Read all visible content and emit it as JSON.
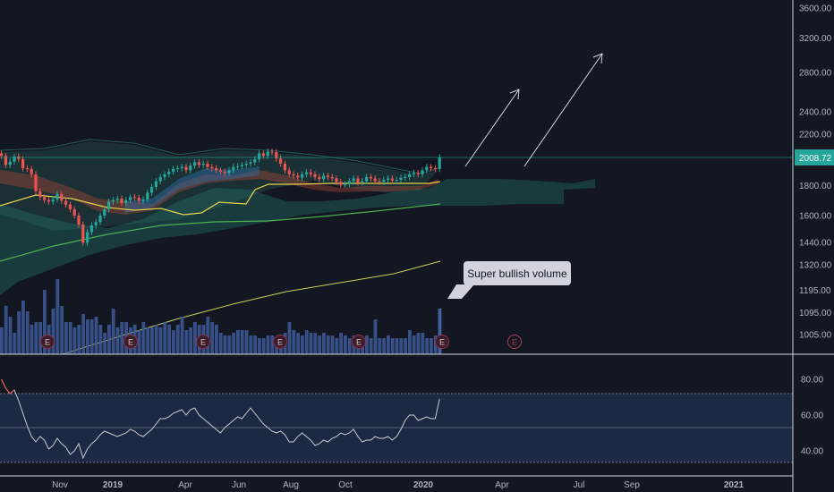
{
  "chart_data": [
    {
      "type": "candlestick",
      "title": "",
      "x_tick_labels": [
        "Nov",
        "2019",
        "Apr",
        "Jun",
        "Aug",
        "Oct",
        "2020",
        "Apr",
        "Jul",
        "Sep",
        "2021"
      ],
      "price_axis_labels": [
        "3600.00",
        "3200.00",
        "2800.00",
        "2400.00",
        "2200.00",
        "1800.00",
        "1600.00",
        "1440.00",
        "1320.00",
        "1195.00",
        "1095.00",
        "1005.00"
      ],
      "last_price": "2008.72",
      "price_ylim": [
        960,
        3750
      ],
      "close_values": [
        2020,
        1950,
        1975,
        2015,
        1995,
        1925,
        1920,
        1880,
        1760,
        1720,
        1700,
        1690,
        1705,
        1740,
        1695,
        1670,
        1640,
        1600,
        1545,
        1440,
        1500,
        1540,
        1560,
        1600,
        1640,
        1690,
        1700,
        1710,
        1680,
        1700,
        1720,
        1715,
        1695,
        1705,
        1750,
        1790,
        1830,
        1860,
        1880,
        1900,
        1920,
        1925,
        1935,
        1910,
        1945,
        1970,
        1950,
        1960,
        1935,
        1925,
        1910,
        1900,
        1890,
        1910,
        1935,
        1940,
        1950,
        1960,
        1970,
        1995,
        2040,
        2020,
        2055,
        2050,
        2000,
        1960,
        1910,
        1880,
        1870,
        1855,
        1880,
        1895,
        1880,
        1860,
        1845,
        1870,
        1860,
        1850,
        1825,
        1805,
        1810,
        1830,
        1850,
        1820,
        1830,
        1860,
        1850,
        1830,
        1825,
        1840,
        1850,
        1835,
        1840,
        1855,
        1860,
        1880,
        1890,
        1880,
        1910,
        1935,
        1925,
        1920,
        2008.72
      ],
      "volume_values": [
        10,
        18,
        14,
        8,
        16,
        20,
        16,
        11,
        12,
        12,
        24,
        11,
        17,
        28,
        18,
        12,
        12,
        10,
        11,
        15,
        13,
        13,
        14,
        11,
        8,
        11,
        17,
        10,
        12,
        12,
        10,
        11,
        9,
        12,
        10,
        10,
        11,
        10,
        12,
        11,
        9,
        11,
        14,
        9,
        10,
        12,
        11,
        11,
        14,
        12,
        11,
        8,
        7,
        7,
        8,
        9,
        9,
        9,
        7,
        7,
        6,
        6,
        7,
        7,
        6,
        7,
        8,
        12,
        9,
        8,
        7,
        9,
        8,
        8,
        7,
        8,
        7,
        7,
        6,
        8,
        7,
        6,
        7,
        7,
        6,
        7,
        6,
        13,
        6,
        6,
        7,
        6,
        6,
        6,
        6,
        9,
        7,
        8,
        8,
        6,
        6,
        7,
        17
      ],
      "earnings_markers": [
        "E",
        "E",
        "E",
        "E",
        "E",
        "E",
        "E"
      ],
      "annotation": "Super bullish volume"
    },
    {
      "type": "line",
      "title": "",
      "y_tick_labels": [
        "80.00",
        "60.00",
        "40.00"
      ],
      "ylim": [
        26,
        92
      ],
      "values": [
        80,
        75,
        72,
        74,
        68,
        61,
        54,
        48,
        45,
        48,
        46,
        41,
        43,
        47,
        44,
        42,
        38,
        40,
        44,
        36,
        41,
        44,
        46,
        49,
        51,
        50,
        49,
        48,
        49,
        50,
        52,
        51,
        49,
        48,
        50,
        52,
        55,
        58,
        58,
        59,
        61,
        62,
        63,
        60,
        63,
        64,
        60,
        58,
        56,
        54,
        52,
        50,
        53,
        55,
        57,
        59,
        58,
        61,
        64,
        61,
        58,
        55,
        53,
        51,
        50,
        51,
        49,
        45,
        45,
        48,
        50,
        48,
        46,
        43,
        44,
        46,
        45,
        47,
        48,
        50,
        49,
        50,
        52,
        48,
        45,
        46,
        46,
        48,
        47,
        47,
        48,
        46,
        48,
        52,
        57,
        60,
        60,
        57,
        58,
        59,
        58,
        58,
        69
      ]
    }
  ]
}
